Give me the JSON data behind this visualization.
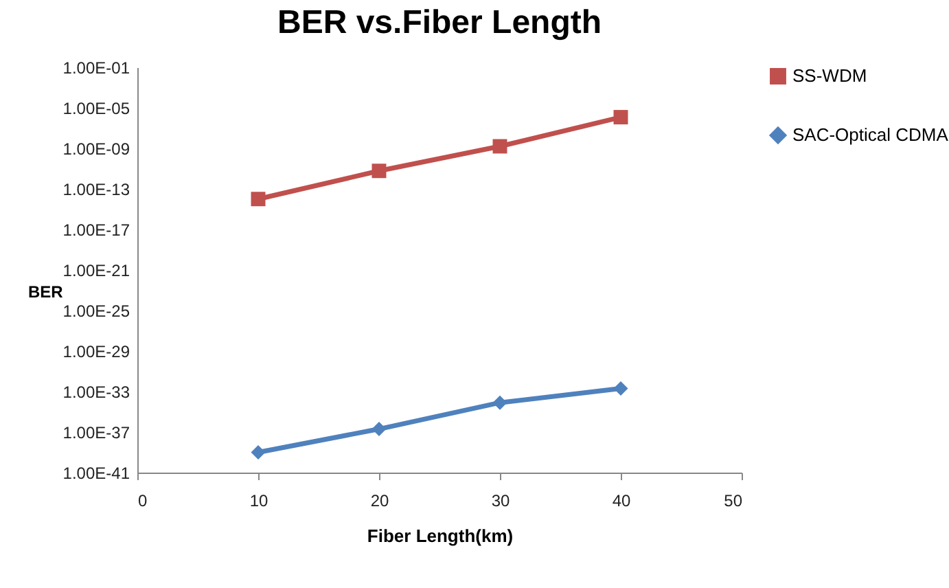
{
  "chart_data": {
    "type": "line",
    "title": "BER vs.Fiber Length",
    "xlabel": "Fiber Length(km)",
    "ylabel": "BER",
    "x": [
      10,
      20,
      30,
      40
    ],
    "series": [
      {
        "name": "SS-WDM",
        "color": "#c0504d",
        "marker": "square",
        "values": [
          1e-14,
          6e-12,
          1.6e-09,
          1.2e-06
        ]
      },
      {
        "name": "SAC-Optical CDMA",
        "color": "#4f81bd",
        "marker": "diamond",
        "values": [
          1e-39,
          2e-37,
          8e-35,
          2e-33
        ]
      }
    ],
    "log": "y",
    "xlim": [
      0,
      50
    ],
    "xticks": [
      0,
      10,
      20,
      30,
      40,
      50
    ],
    "ylim": [
      1e-41,
      0.1
    ],
    "yticks": [
      {
        "value": 0.1,
        "label": "1.00E-01"
      },
      {
        "value": 1e-05,
        "label": "1.00E-05"
      },
      {
        "value": 1e-09,
        "label": "1.00E-09"
      },
      {
        "value": 1e-13,
        "label": "1.00E-13"
      },
      {
        "value": 1e-17,
        "label": "1.00E-17"
      },
      {
        "value": 1e-21,
        "label": "1.00E-21"
      },
      {
        "value": 1e-25,
        "label": "1.00E-25"
      },
      {
        "value": 1e-29,
        "label": "1.00E-29"
      },
      {
        "value": 1e-33,
        "label": "1.00E-33"
      },
      {
        "value": 1e-37,
        "label": "1.00E-37"
      },
      {
        "value": 1e-41,
        "label": "1.00E-41"
      }
    ],
    "grid": false,
    "legend": "right",
    "line_style": "solid"
  }
}
